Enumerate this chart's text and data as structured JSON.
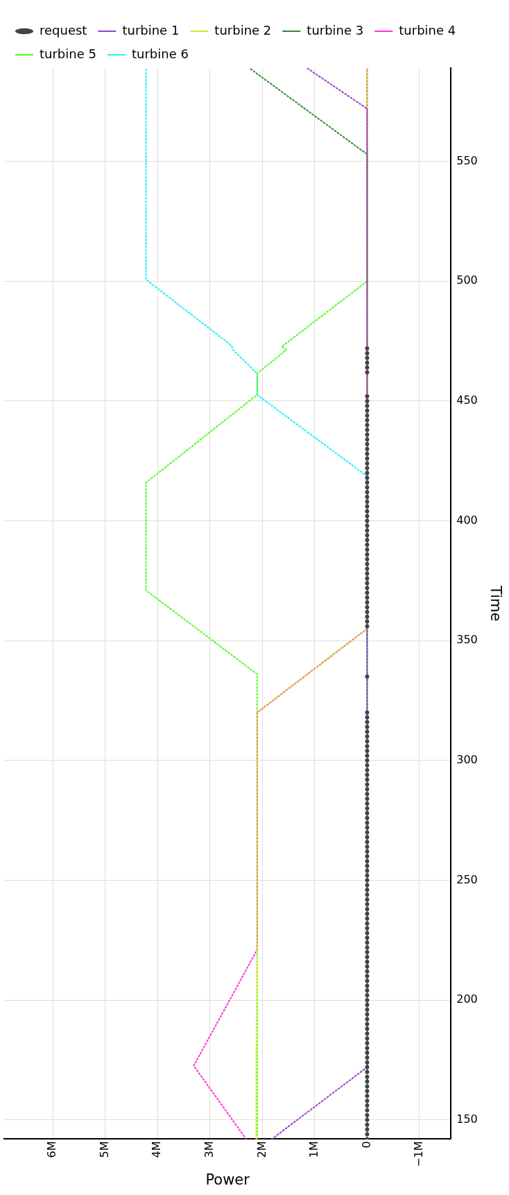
{
  "chart_data": {
    "type": "line",
    "xlabel": "Power",
    "ylabel": "Time",
    "ylim": [
      142,
      589
    ],
    "xlim": [
      6930000,
      -1600000
    ],
    "yticks": [
      150,
      200,
      250,
      300,
      350,
      400,
      450,
      500,
      550
    ],
    "xticks": [
      {
        "value": -1000000,
        "label": "−1M"
      },
      0,
      {
        "value": 1000000,
        "label": "1M"
      },
      {
        "value": 2000000,
        "label": "2M"
      },
      {
        "value": 3000000,
        "label": "3M"
      },
      {
        "value": 4000000,
        "label": "4M"
      },
      {
        "value": 5000000,
        "label": "5M"
      },
      {
        "value": 6000000,
        "label": "6M"
      }
    ],
    "grid": true,
    "legend": "top left",
    "series": [
      {
        "name": "request",
        "type": "scatter",
        "marker": "circle",
        "color": "#444444",
        "values": [
          142,
          144,
          146,
          148,
          150,
          152,
          154,
          156,
          158,
          160,
          162,
          164,
          166,
          168,
          170,
          172,
          174,
          176,
          178,
          180,
          182,
          184,
          186,
          188,
          190,
          192,
          194,
          196,
          198,
          200,
          202,
          204,
          206,
          208,
          210,
          212,
          214,
          216,
          218,
          220,
          222,
          224,
          226,
          228,
          230,
          232,
          234,
          236,
          238,
          240,
          242,
          244,
          246,
          248,
          250,
          252,
          254,
          256,
          258,
          260,
          262,
          264,
          266,
          268,
          270,
          272,
          274,
          276,
          278,
          280,
          282,
          284,
          286,
          288,
          290,
          292,
          294,
          296,
          298,
          300,
          302,
          304,
          306,
          308,
          310,
          312,
          314,
          316,
          318,
          320,
          335,
          356,
          358,
          360,
          362,
          364,
          366,
          368,
          370,
          372,
          374,
          376,
          378,
          380,
          382,
          384,
          386,
          388,
          390,
          392,
          394,
          396,
          398,
          400,
          402,
          404,
          406,
          408,
          410,
          412,
          414,
          416,
          418,
          420,
          422,
          424,
          426,
          428,
          430,
          432,
          434,
          436,
          438,
          440,
          442,
          444,
          446,
          448,
          450,
          452,
          462,
          464,
          466,
          468,
          470,
          472
        ],
        "x": [
          0,
          0,
          0,
          0,
          0,
          0,
          0,
          0,
          0,
          0,
          0,
          0,
          0,
          0,
          0,
          0,
          0,
          0,
          0,
          0,
          0,
          0,
          0,
          0,
          0,
          0,
          0,
          0,
          0,
          0,
          0,
          0,
          0,
          0,
          0,
          0,
          0,
          0,
          0,
          0,
          0,
          0,
          0,
          0,
          0,
          0,
          0,
          0,
          0,
          0,
          0,
          0,
          0,
          0,
          0,
          0,
          0,
          0,
          0,
          0,
          0,
          0,
          0,
          0,
          0,
          0,
          0,
          0,
          0,
          0,
          0,
          0,
          0,
          0,
          0,
          0,
          0,
          0,
          0,
          0,
          0,
          0,
          0,
          0,
          0,
          0,
          0,
          0,
          0,
          0,
          0,
          0,
          0,
          0,
          0,
          0,
          0,
          0,
          0,
          0,
          0,
          0,
          0,
          0,
          0,
          0,
          0,
          0,
          0,
          0,
          0,
          0,
          0,
          0,
          0,
          0,
          0,
          0,
          0,
          0,
          0,
          0,
          0,
          0,
          0,
          0,
          0,
          0,
          0,
          0,
          0,
          0,
          0,
          0,
          0,
          0,
          0,
          0,
          0,
          0,
          0,
          0,
          0,
          0,
          0,
          0
        ]
      },
      {
        "name": "turbine 1",
        "type": "line",
        "marker": "none",
        "line_style": "dotted",
        "color": "#9b3fc9",
        "values": [
          142,
          172,
          572,
          589
        ],
        "x": [
          1820000,
          0,
          0,
          1150000
        ]
      },
      {
        "name": "turbine 2",
        "type": "line",
        "marker": "none",
        "line_style": "dotted",
        "color": "#d4e62b",
        "values": [
          142,
          172,
          222,
          320,
          355,
          589
        ],
        "x": [
          2120000,
          2120000,
          2100000,
          2100000,
          0,
          0
        ]
      },
      {
        "name": "turbine 3",
        "type": "line",
        "marker": "none",
        "line_style": "dotted",
        "color": "#2e8b2e",
        "values": [
          142,
          553,
          589
        ],
        "x": [
          0,
          0,
          2250000
        ]
      },
      {
        "name": "turbine 4",
        "type": "line",
        "marker": "none",
        "line_style": "dotted",
        "color": "#ff33dd",
        "values": [
          142,
          172.6,
          221,
          320,
          355,
          589
        ],
        "x": [
          2310000,
          3310000,
          2100000,
          2100000,
          0,
          0
        ]
      },
      {
        "name": "turbine 5",
        "type": "line",
        "marker": "none",
        "line_style": "dotted",
        "color": "#4cff1e",
        "values": [
          142,
          336,
          371,
          416,
          452.6,
          461.5,
          471.4,
          472.7,
          500,
          589
        ],
        "x": [
          2100000,
          2100000,
          4220000,
          4220000,
          2100000,
          2100000,
          1540000,
          1630000,
          0,
          0
        ]
      },
      {
        "name": "turbine 6",
        "type": "line",
        "marker": "none",
        "line_style": "dotted",
        "color": "#1ef0f8",
        "values": [
          142,
          418.6,
          452.6,
          461.5,
          471.4,
          473.2,
          500.7,
          589
        ],
        "x": [
          0,
          0,
          2100000,
          2100000,
          2560000,
          2590000,
          4220000,
          4220000
        ]
      }
    ]
  }
}
